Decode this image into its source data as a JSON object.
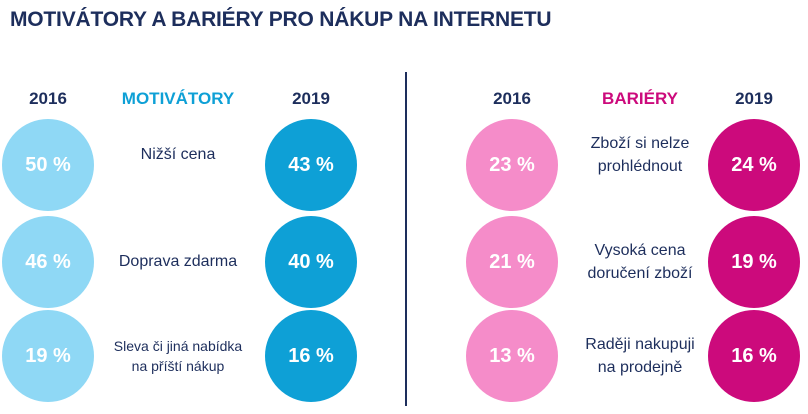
{
  "title": "MOTIVÁTORY A BARIÉRY PRO NÁKUP NA INTERNETU",
  "colors": {
    "navy": "#1d2e5c",
    "motivatory_2016": "#8fd8f5",
    "motivatory_2019": "#0ea0d6",
    "motivatory_heading": "#0ea0d6",
    "bariery_2016": "#f58cc9",
    "bariery_2019": "#cc0a7c",
    "bariery_heading": "#cc0a7c"
  },
  "chart_data": [
    {
      "type": "table",
      "heading": "MOTIVÁTORY",
      "columns": [
        "2016",
        "2019"
      ],
      "rows": [
        {
          "label_lines": [
            "Nižší cena"
          ],
          "v2016": "50 %",
          "v2019": "43 %"
        },
        {
          "label_lines": [
            "Doprava zdarma"
          ],
          "v2016": "46 %",
          "v2019": "40 %"
        },
        {
          "label_lines": [
            "Sleva či jiná nabídka",
            "na příští nákup"
          ],
          "v2016": "19 %",
          "v2019": "16 %"
        }
      ]
    },
    {
      "type": "table",
      "heading": "BARIÉRY",
      "columns": [
        "2016",
        "2019"
      ],
      "rows": [
        {
          "label_lines": [
            "Zboží si nelze",
            "prohlédnout"
          ],
          "v2016": "23 %",
          "v2019": "24 %"
        },
        {
          "label_lines": [
            "Vysoká cena",
            "doručení zboží"
          ],
          "v2016": "21 %",
          "v2019": "19 %"
        },
        {
          "label_lines": [
            "Raději nakupuji",
            "na prodejně"
          ],
          "v2016": "13 %",
          "v2019": "16 %"
        }
      ]
    }
  ]
}
